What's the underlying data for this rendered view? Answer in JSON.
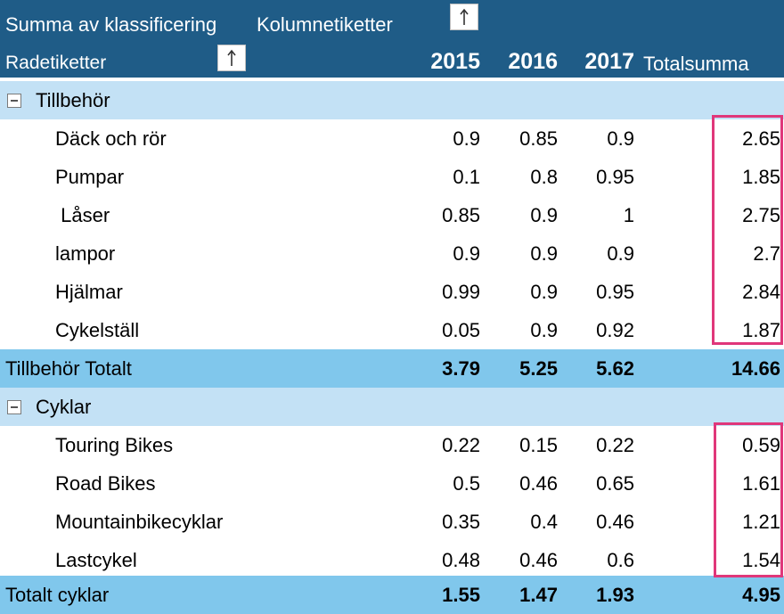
{
  "header": {
    "title": "Summa av klassificering",
    "column_labels": "Kolumnetiketter",
    "row_labels": "Radetiketter",
    "years": [
      "2015",
      "2016",
      "2017"
    ],
    "grand_total_label": "Totalsumma",
    "sort_icon": "arrow-up-icon"
  },
  "groups": [
    {
      "label": "Tillbehör",
      "items": [
        {
          "label": "Däck och rör",
          "v2015": "0.9",
          "v2016": "0.85",
          "v2017": "0.9",
          "total": "2.65"
        },
        {
          "label": "Pumpar",
          "v2015": "0.1",
          "v2016": "0.8",
          "v2017": "0.95",
          "total": "1.85"
        },
        {
          "label": " Låser",
          "v2015": "0.85",
          "v2016": "0.9",
          "v2017": "1",
          "total": "2.75"
        },
        {
          "label": "lampor",
          "v2015": "0.9",
          "v2016": "0.9",
          "v2017": "0.9",
          "total": "2.7"
        },
        {
          "label": "Hjälmar",
          "v2015": "0.99",
          "v2016": "0.9",
          "v2017": "0.95",
          "total": "2.84"
        },
        {
          "label": "Cykelställ",
          "v2015": "0.05",
          "v2016": "0.9",
          "v2017": "0.92",
          "total": "1.87"
        }
      ],
      "subtotal": {
        "label": "Tillbehör Totalt",
        "v2015": "3.79",
        "v2016": "5.25",
        "v2017": "5.62",
        "total": "14.66"
      }
    },
    {
      "label": "Cyklar",
      "items": [
        {
          "label": "Touring Bikes",
          "v2015": "0.22",
          "v2016": "0.15",
          "v2017": "0.22",
          "total": "0.59"
        },
        {
          "label": "Road Bikes",
          "v2015": "0.5",
          "v2016": "0.46",
          "v2017": "0.65",
          "total": "1.61"
        },
        {
          "label": "Mountainbikecyklar",
          "v2015": "0.35",
          "v2016": "0.4",
          "v2017": "0.46",
          "total": "1.21"
        },
        {
          "label": "Lastcykel",
          "v2015": "0.48",
          "v2016": "0.46",
          "v2017": "0.6",
          "total": "1.54"
        }
      ],
      "subtotal": {
        "label": "Totalt cyklar",
        "v2015": "1.55",
        "v2016": "1.47",
        "v2017": "1.93",
        "total": "4.95"
      }
    }
  ],
  "colors": {
    "header_bg": "#1f5c87",
    "group_bg": "#c3e1f5",
    "subtotal_bg": "#80c7ec",
    "highlight": "#e0377a"
  }
}
